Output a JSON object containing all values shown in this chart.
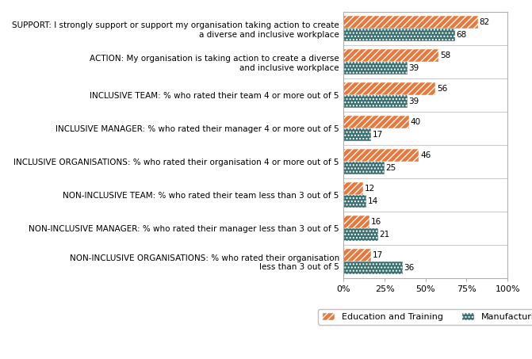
{
  "categories": [
    "SUPPORT: I strongly support or support my organisation taking action to create\na diverse and inclusive workplace",
    "ACTION: My organisation is taking action to create a diverse\nand inclusive workplace",
    "INCLUSIVE TEAM: % who rated their team 4 or more out of 5",
    "INCLUSIVE MANAGER: % who rated their manager 4 or more out of 5",
    "INCLUSIVE ORGANISATIONS: % who rated their organisation 4 or more out of 5",
    "NON-INCLUSIVE TEAM: % who rated their team less than 3 out of 5",
    "NON-INCLUSIVE MANAGER: % who rated their manager less than 3 out of 5",
    "NON-INCLUSIVE ORGANISATIONS: % who rated their organisation\nless than 3 out of 5"
  ],
  "education_values": [
    82,
    58,
    56,
    40,
    46,
    12,
    16,
    17
  ],
  "manufacturing_values": [
    68,
    39,
    39,
    17,
    25,
    14,
    21,
    36
  ],
  "education_color": "#E8783C",
  "manufacturing_color": "#3D7070",
  "bar_height": 0.38,
  "xlim": [
    0,
    100
  ],
  "xticks": [
    0,
    25,
    50,
    75,
    100
  ],
  "xtick_labels": [
    "0%",
    "25%",
    "50%",
    "75%",
    "100%"
  ],
  "legend_education": "Education and Training",
  "legend_manufacturing": "Manufacturing",
  "value_fontsize": 7.5,
  "label_fontsize": 7.5,
  "background_color": "#ffffff",
  "border_color": "#b0b0b0"
}
